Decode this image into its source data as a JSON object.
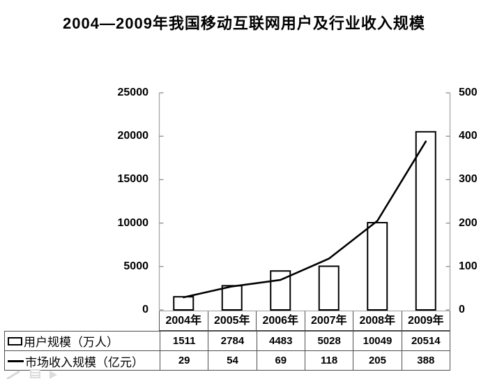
{
  "title": "2004—2009年我国移动互联网用户及行业收入规模",
  "axes": {
    "left_labels": [
      "25000",
      "20000",
      "15000",
      "10000",
      "5000",
      "0"
    ],
    "right_labels": [
      "500",
      "400",
      "300",
      "200",
      "100",
      "0"
    ]
  },
  "table": {
    "years": [
      "2004年",
      "2005年",
      "2006年",
      "2007年",
      "2008年",
      "2009年"
    ],
    "user_label": "用户规模（万人）",
    "revenue_label": "市场收入规模（亿元）",
    "users": [
      "1511",
      "2784",
      "4483",
      "5028",
      "10049",
      "20514"
    ],
    "revenue": [
      "29",
      "54",
      "69",
      "118",
      "205",
      "388"
    ]
  },
  "chart_data": {
    "type": "bar",
    "title": "2004—2009年我国移动互联网用户及行业收入规模",
    "categories": [
      "2004年",
      "2005年",
      "2006年",
      "2007年",
      "2008年",
      "2009年"
    ],
    "series": [
      {
        "name": "用户规模（万人）",
        "type": "bar",
        "axis": "left",
        "values": [
          1511,
          2784,
          4483,
          5028,
          10049,
          20514
        ]
      },
      {
        "name": "市场收入规模（亿元）",
        "type": "line",
        "axis": "right",
        "values": [
          29,
          54,
          69,
          118,
          205,
          388
        ]
      }
    ],
    "left_axis": {
      "min": 0,
      "max": 25000,
      "tick_step": 5000
    },
    "right_axis": {
      "min": 0,
      "max": 500,
      "tick_step": 100
    },
    "grid": false,
    "legend_position": "table rows below chart",
    "colors": {
      "bar_fill": "#ffffff",
      "bar_stroke": "#000000",
      "line": "#000000",
      "axis": "#a6a6a6"
    }
  }
}
